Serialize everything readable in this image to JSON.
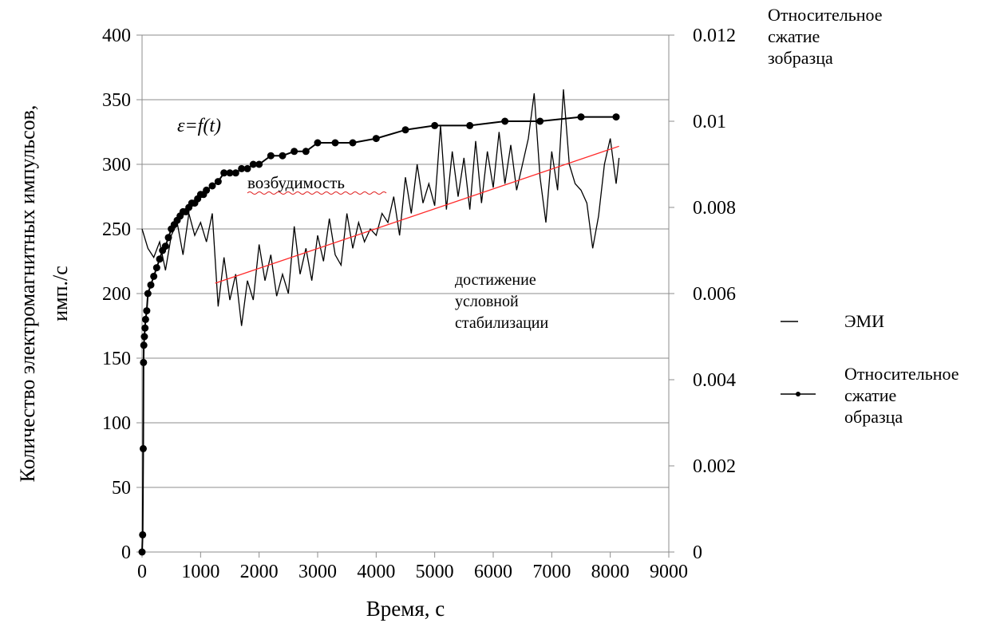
{
  "chart_data": {
    "type": "line",
    "x_label": "Время, с",
    "y_label": [
      "Количество электромагнитных  импульсов,",
      "имп./с"
    ],
    "y2_label": "Относительное сжатие зобразца",
    "xlim": [
      0,
      9000
    ],
    "xticks": [
      0,
      1000,
      2000,
      3000,
      4000,
      5000,
      6000,
      7000,
      8000,
      9000
    ],
    "ylim": [
      0,
      400
    ],
    "yticks": [
      0,
      50,
      100,
      150,
      200,
      250,
      300,
      350,
      400
    ],
    "y2lim": [
      0,
      0.012
    ],
    "y2ticks": [
      0,
      0.002,
      0.004,
      0.006,
      0.008,
      0.01,
      0.012
    ],
    "grid": true,
    "legend": "right",
    "annotations": [
      {
        "text": "ε=f(t)"
      },
      {
        "text": "возбудимость"
      },
      {
        "text": "достижение условной стабилизации"
      }
    ],
    "series": [
      {
        "name": "ЭМИ",
        "color": "#000000",
        "x": [
          0,
          100,
          200,
          300,
          400,
          500,
          600,
          700,
          800,
          900,
          1000,
          1100,
          1200,
          1300,
          1400,
          1500,
          1600,
          1700,
          1800,
          1900,
          2000,
          2100,
          2200,
          2300,
          2400,
          2500,
          2600,
          2700,
          2800,
          2900,
          3000,
          3100,
          3200,
          3300,
          3400,
          3500,
          3600,
          3700,
          3800,
          3900,
          4000,
          4100,
          4200,
          4300,
          4400,
          4500,
          4600,
          4700,
          4800,
          4900,
          5000,
          5100,
          5200,
          5300,
          5400,
          5500,
          5600,
          5700,
          5800,
          5900,
          6000,
          6100,
          6200,
          6300,
          6400,
          6500,
          6600,
          6700,
          6800,
          6900,
          7000,
          7100,
          7200,
          7300,
          7400,
          7500,
          7600,
          7700,
          7800,
          7900,
          8000,
          8100,
          8150
        ],
        "values": [
          250,
          235,
          228,
          240,
          218,
          245,
          255,
          230,
          262,
          245,
          255,
          240,
          262,
          190,
          228,
          195,
          215,
          175,
          210,
          195,
          238,
          210,
          230,
          198,
          215,
          200,
          252,
          215,
          235,
          210,
          245,
          225,
          258,
          230,
          222,
          262,
          235,
          255,
          240,
          250,
          245,
          262,
          255,
          275,
          245,
          290,
          262,
          300,
          270,
          285,
          268,
          330,
          265,
          310,
          275,
          305,
          265,
          318,
          270,
          310,
          282,
          325,
          285,
          315,
          280,
          300,
          320,
          355,
          290,
          255,
          310,
          280,
          358,
          300,
          285,
          280,
          270,
          235,
          260,
          300,
          320,
          285,
          305
        ]
      },
      {
        "name": "Относительное сжатие образца",
        "color": "#000000",
        "axis": "y2",
        "markers": true,
        "x": [
          0,
          10,
          20,
          25,
          30,
          40,
          50,
          60,
          80,
          100,
          150,
          200,
          250,
          300,
          350,
          400,
          450,
          500,
          550,
          600,
          650,
          700,
          750,
          800,
          850,
          900,
          950,
          1000,
          1050,
          1100,
          1200,
          1300,
          1400,
          1500,
          1600,
          1700,
          1800,
          1900,
          2000,
          2200,
          2400,
          2600,
          2800,
          3000,
          3300,
          3600,
          4000,
          4500,
          5000,
          5600,
          6200,
          6800,
          7500,
          8100
        ],
        "values": [
          0,
          0.0004,
          0.0024,
          0.0044,
          0.0048,
          0.005,
          0.0052,
          0.0054,
          0.0056,
          0.006,
          0.0062,
          0.0064,
          0.0066,
          0.0068,
          0.007,
          0.0071,
          0.0073,
          0.0075,
          0.0076,
          0.0077,
          0.0078,
          0.0079,
          0.0079,
          0.008,
          0.0081,
          0.0081,
          0.0082,
          0.0083,
          0.0083,
          0.0084,
          0.0085,
          0.0086,
          0.0088,
          0.0088,
          0.0088,
          0.0089,
          0.0089,
          0.009,
          0.009,
          0.0092,
          0.0092,
          0.0093,
          0.0093,
          0.0095,
          0.0095,
          0.0095,
          0.0096,
          0.0098,
          0.0099,
          0.0099,
          0.01,
          0.01,
          0.0101,
          0.0101
        ]
      },
      {
        "color": "#ff2a2a",
        "x": [
          1250,
          8150
        ],
        "values": [
          208,
          314
        ]
      }
    ]
  }
}
